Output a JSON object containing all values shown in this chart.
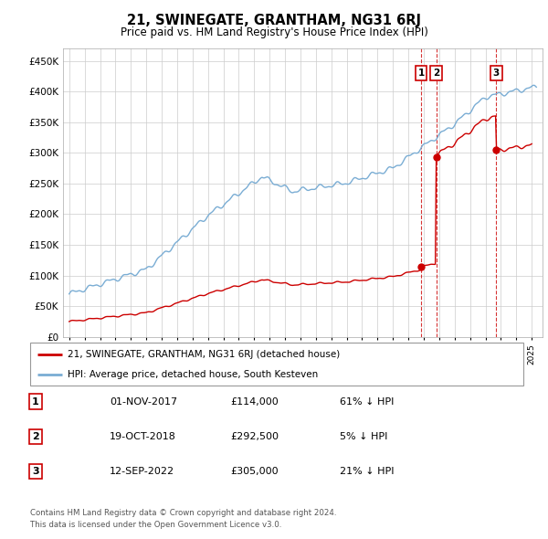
{
  "title": "21, SWINEGATE, GRANTHAM, NG31 6RJ",
  "subtitle": "Price paid vs. HM Land Registry's House Price Index (HPI)",
  "legend_label_red": "21, SWINEGATE, GRANTHAM, NG31 6RJ (detached house)",
  "legend_label_blue": "HPI: Average price, detached house, South Kesteven",
  "footer1": "Contains HM Land Registry data © Crown copyright and database right 2024.",
  "footer2": "This data is licensed under the Open Government Licence v3.0.",
  "sales_display": [
    {
      "label": "1",
      "date_str": "01-NOV-2017",
      "price_str": "£114,000",
      "hpi_str": "61% ↓ HPI"
    },
    {
      "label": "2",
      "date_str": "19-OCT-2018",
      "price_str": "£292,500",
      "hpi_str": "5% ↓ HPI"
    },
    {
      "label": "3",
      "date_str": "12-SEP-2022",
      "price_str": "£305,000",
      "hpi_str": "21% ↓ HPI"
    }
  ],
  "ylim": [
    0,
    470000
  ],
  "yticks": [
    0,
    50000,
    100000,
    150000,
    200000,
    250000,
    300000,
    350000,
    400000,
    450000
  ],
  "ytick_labels": [
    "£0",
    "£50K",
    "£100K",
    "£150K",
    "£200K",
    "£250K",
    "£300K",
    "£350K",
    "£400K",
    "£450K"
  ],
  "red_color": "#cc0000",
  "blue_color": "#7aadd4",
  "grid_color": "#cccccc",
  "sale_year_dec": [
    2017.833,
    2018.8,
    2022.7
  ],
  "sale_prices": [
    114000,
    292500,
    305000
  ],
  "sale_labels": [
    "1",
    "2",
    "3"
  ]
}
